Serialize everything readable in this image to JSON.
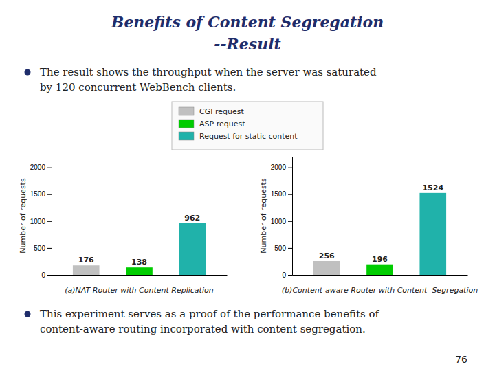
{
  "title": "Benefits of Content Segregation",
  "subtitle": "--Result",
  "annotations": [
    "The result shows the throughput when the server was saturated",
    "by 120 concurrent WebBench clients.",
    "This experiment serves as a proof of the performance benefits of",
    "content-aware routing incorporated with content segregation.",
    "76"
  ],
  "chart_data": [
    {
      "type": "bar",
      "title": "(a)NAT Router with Content Replication",
      "categories": [
        "CGI request",
        "ASP request",
        "Request for static content"
      ],
      "values": [
        176,
        138,
        962
      ],
      "colors": [
        "#C0C0C0",
        "#00CC00",
        "#20B2AA"
      ],
      "ylabel": "Number of requests",
      "ylim": [
        0,
        2200
      ],
      "yticks": [
        0,
        500,
        1000,
        1500,
        2000
      ],
      "data_labels": true,
      "tick_labels": "y",
      "legend": "top",
      "grid": false
    },
    {
      "type": "bar",
      "title": "(b)Content-aware Router with Content  Segregation",
      "categories": [
        "CGI request",
        "ASP request",
        "Request for static content"
      ],
      "values": [
        256,
        196,
        1524
      ],
      "colors": [
        "#C0C0C0",
        "#00CC00",
        "#20B2AA"
      ],
      "ylabel": "Number of requests",
      "ylim": [
        0,
        2200
      ],
      "yticks": [
        0,
        500,
        1000,
        1500,
        2000
      ],
      "data_labels": true,
      "tick_labels": "y",
      "legend": "top",
      "grid": false
    }
  ]
}
